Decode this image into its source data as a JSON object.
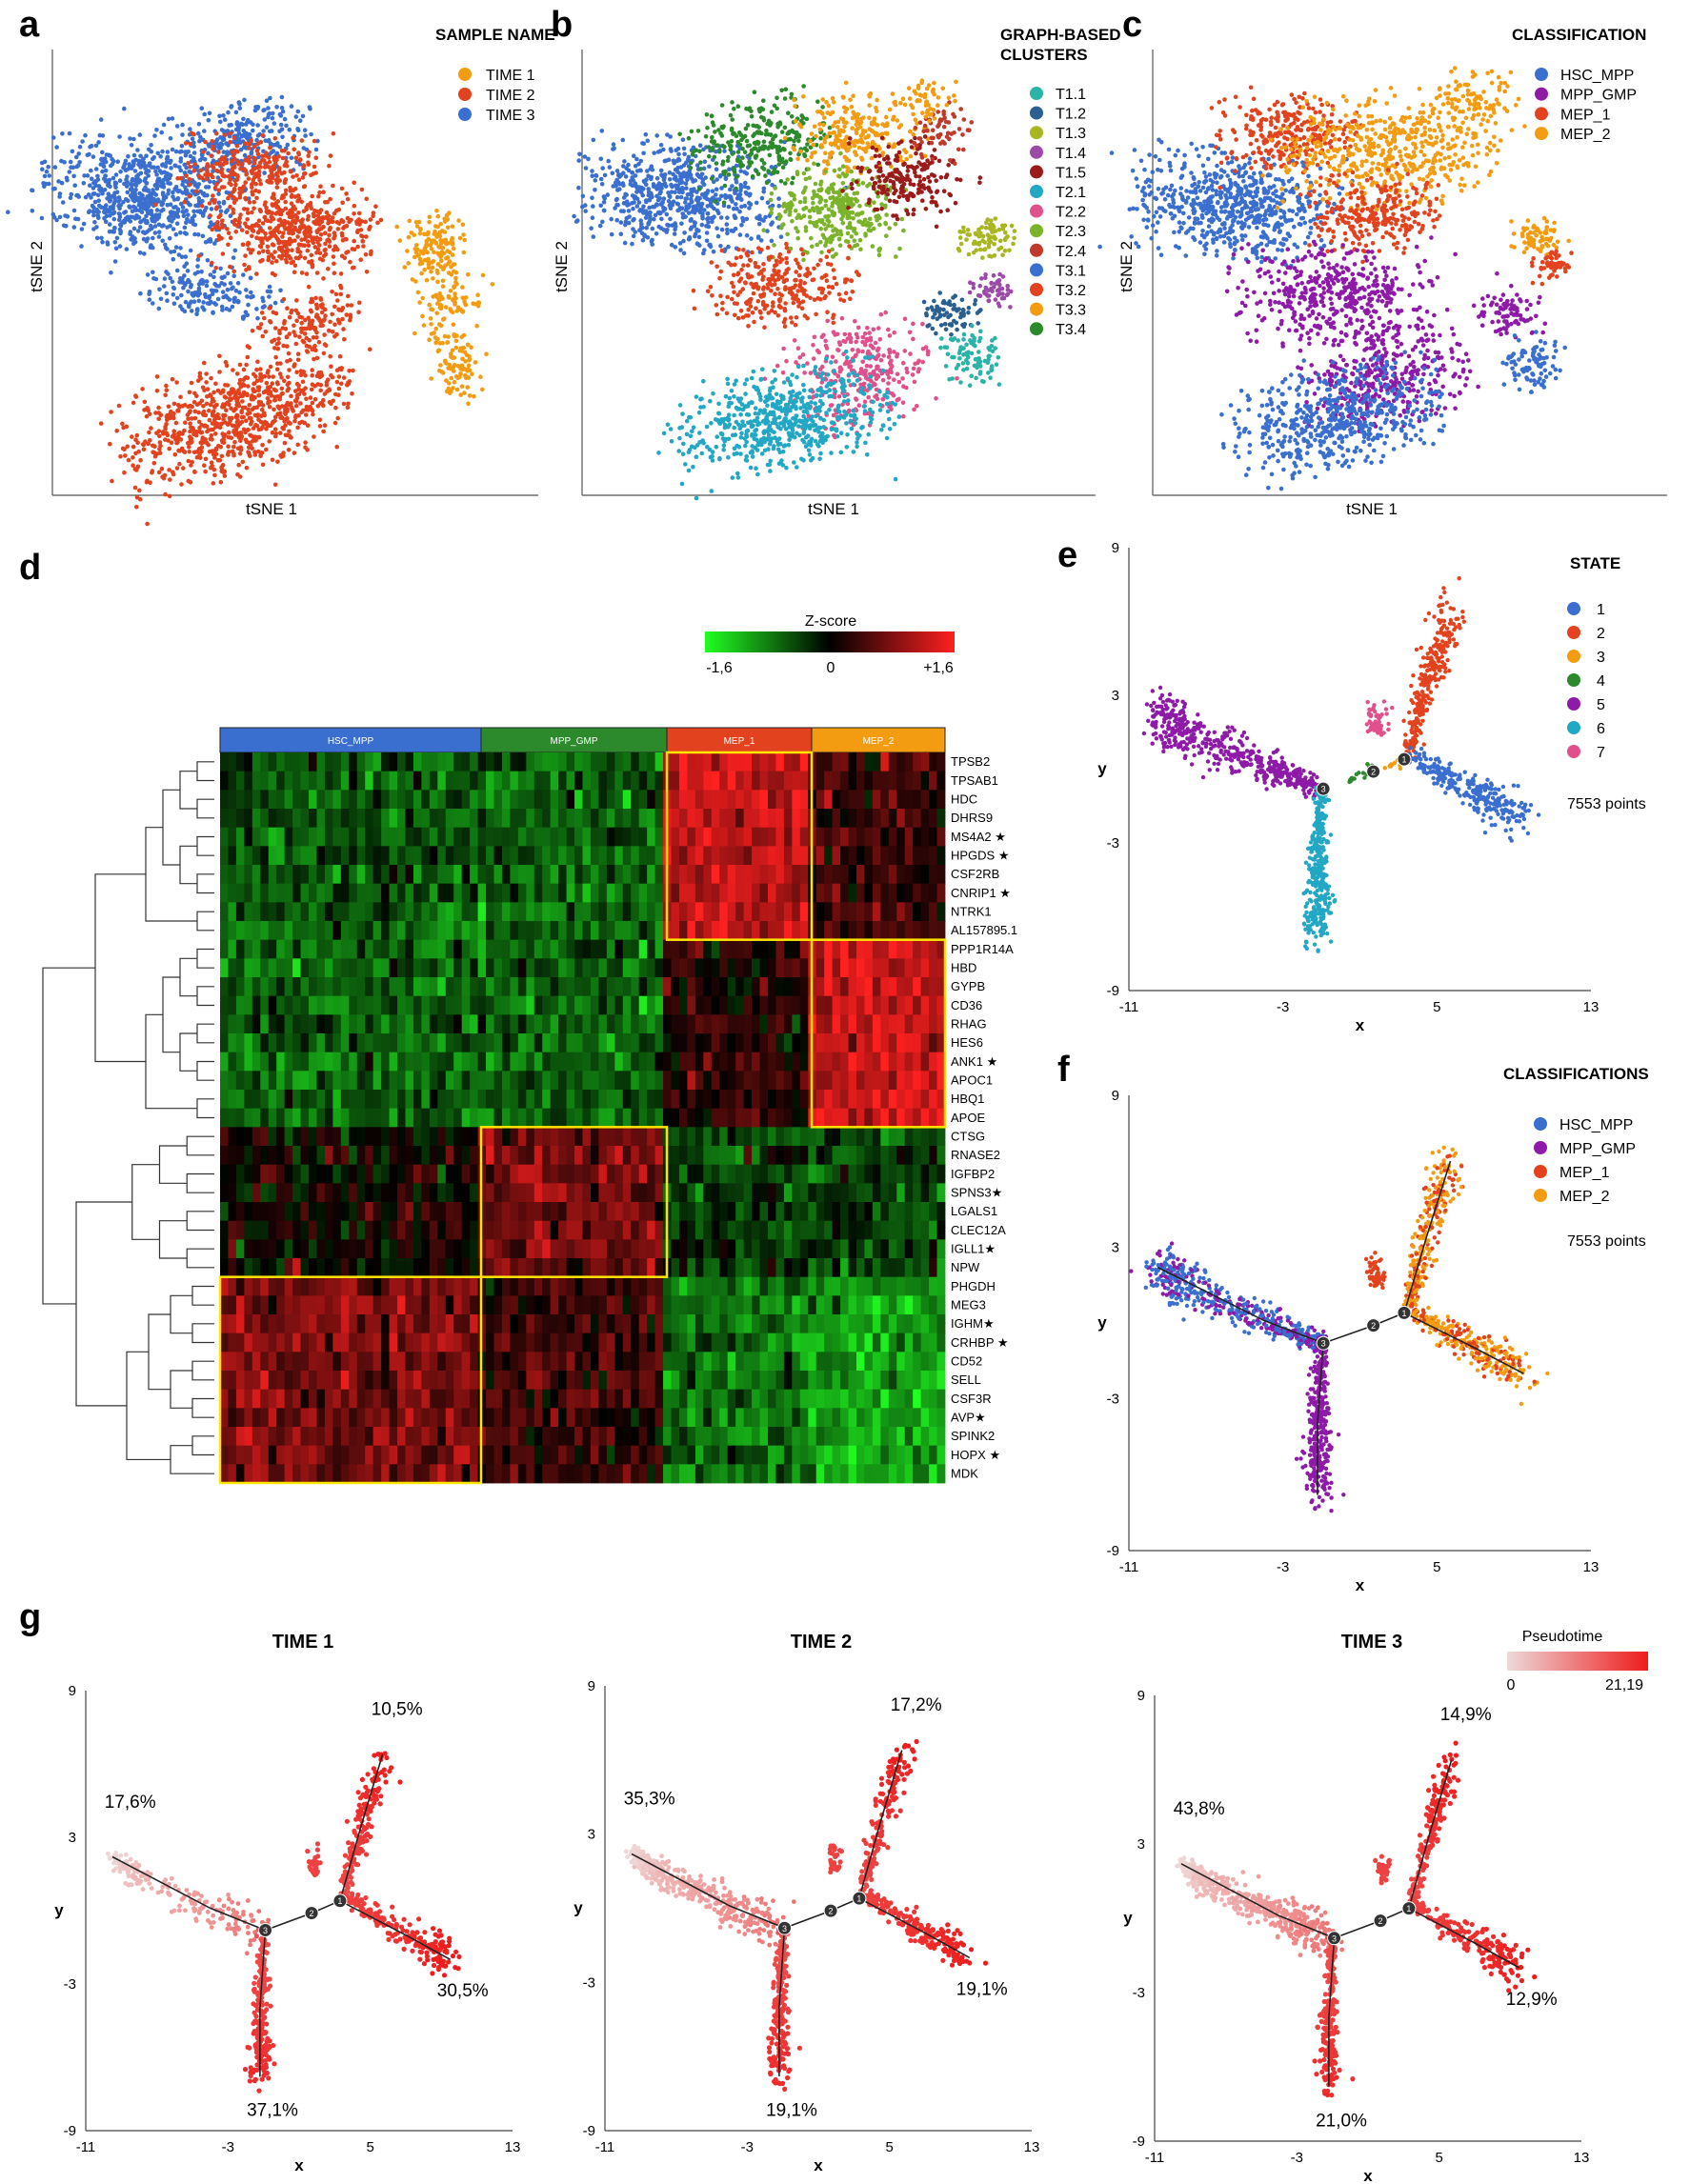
{
  "colors": {
    "orange": "#f39c12",
    "red": "#e2431e",
    "blue": "#3a6fcf",
    "purple": "#8e1aa8",
    "green": "#2ca02c",
    "cyan": "#22a7c4",
    "pink": "#e0508a",
    "dark_red": "#9b1b1b",
    "teal": "#2cb3a8",
    "olive": "#a8b622",
    "steel": "#2a5f8f",
    "mauve": "#9b4aa8",
    "lime": "#7bb32a"
  },
  "panels": {
    "a": {
      "label": "a",
      "legend_title": "SAMPLE NAME",
      "xlabel": "tSNE 1",
      "ylabel": "tSNE 2"
    },
    "b": {
      "label": "b",
      "legend_title_line1": "GRAPH-BASED",
      "legend_title_line2": "CLUSTERS",
      "xlabel": "tSNE 1",
      "ylabel": "tSNE 2"
    },
    "c": {
      "label": "c",
      "legend_title": "CLASSIFICATION",
      "xlabel": "tSNE 1",
      "ylabel": "tSNE 2"
    },
    "d": {
      "label": "d",
      "zscore_title": "Z-score",
      "zscore_min": "-1,6",
      "zscore_mid": "0",
      "zscore_max": "+1,6"
    },
    "e": {
      "label": "e",
      "legend_title": "STATE",
      "points_note": "7553 points",
      "xlabel": "x",
      "ylabel": "y"
    },
    "f": {
      "label": "f",
      "legend_title": "CLASSIFICATIONS",
      "points_note": "7553 points",
      "xlabel": "x",
      "ylabel": "y"
    },
    "g": {
      "label": "g",
      "pseudotime_title": "Pseudotime",
      "pseudotime_min": "0",
      "pseudotime_max": "21,19",
      "xlabel": "x",
      "ylabel": "y"
    }
  },
  "chart_data": [
    {
      "type": "scatter",
      "panel": "a",
      "title": "SAMPLE NAME",
      "xlabel": "tSNE 1",
      "ylabel": "tSNE 2",
      "series": [
        {
          "name": "TIME 1",
          "color": "#f39c12"
        },
        {
          "name": "TIME 2",
          "color": "#e2431e"
        },
        {
          "name": "TIME 3",
          "color": "#3a6fcf"
        }
      ]
    },
    {
      "type": "scatter",
      "panel": "b",
      "title": "GRAPH-BASED CLUSTERS",
      "xlabel": "tSNE 1",
      "ylabel": "tSNE 2",
      "series": [
        {
          "name": "T1.1",
          "color": "#2cb3a8"
        },
        {
          "name": "T1.2",
          "color": "#2a5f8f"
        },
        {
          "name": "T1.3",
          "color": "#a8b622"
        },
        {
          "name": "T1.4",
          "color": "#9b4aa8"
        },
        {
          "name": "T1.5",
          "color": "#9b1b1b"
        },
        {
          "name": "T2.1",
          "color": "#22a7c4"
        },
        {
          "name": "T2.2",
          "color": "#e0508a"
        },
        {
          "name": "T2.3",
          "color": "#7bb32a"
        },
        {
          "name": "T2.4",
          "color": "#c0392b"
        },
        {
          "name": "T3.1",
          "color": "#3a6fcf"
        },
        {
          "name": "T3.2",
          "color": "#e2431e"
        },
        {
          "name": "T3.3",
          "color": "#f39c12"
        },
        {
          "name": "T3.4",
          "color": "#2c8a2c"
        }
      ]
    },
    {
      "type": "scatter",
      "panel": "c",
      "title": "CLASSIFICATION",
      "xlabel": "tSNE 1",
      "ylabel": "tSNE 2",
      "series": [
        {
          "name": "HSC_MPP",
          "color": "#3a6fcf"
        },
        {
          "name": "MPP_GMP",
          "color": "#8e1aa8"
        },
        {
          "name": "MEP_1",
          "color": "#e2431e"
        },
        {
          "name": "MEP_2",
          "color": "#f39c12"
        }
      ]
    },
    {
      "type": "heatmap",
      "panel": "d",
      "title": "Z-score",
      "color_range": [
        -1.6,
        1.6
      ],
      "column_groups": [
        "HSC_MPP",
        "MPP_GMP",
        "MEP_1",
        "MEP_2"
      ],
      "genes": [
        "TPSB2",
        "TPSAB1",
        "HDC",
        "DHRS9",
        "MS4A2 ★",
        "HPGDS ★",
        "CSF2RB",
        "CNRIP1 ★",
        "NTRK1",
        "AL157895.1",
        "PPP1R14A",
        "HBD",
        "GYPB",
        "CD36",
        "RHAG",
        "HES6",
        "ANK1 ★",
        "APOC1",
        "HBQ1",
        "APOE",
        "CTSG",
        "RNASE2",
        "IGFBP2",
        "SPNS3★",
        "LGALS1",
        "CLEC12A",
        "IGLL1★",
        "NPW",
        "PHGDH",
        "MEG3",
        "IGHM★",
        "CRHBP ★",
        "CD52",
        "SELL",
        "CSF3R",
        "AVP★",
        "SPINK2",
        "HOPX ★",
        "MDK"
      ]
    },
    {
      "type": "scatter",
      "panel": "e",
      "title": "STATE",
      "xlabel": "x",
      "ylabel": "y",
      "xlim": [
        -11,
        13
      ],
      "ylim": [
        -9,
        9
      ],
      "xticks": [
        "-11",
        "-3",
        "5",
        "13"
      ],
      "yticks": [
        "9",
        "3",
        "-3",
        "-9"
      ],
      "series": [
        {
          "name": "1",
          "color": "#3a6fcf"
        },
        {
          "name": "2",
          "color": "#e2431e"
        },
        {
          "name": "3",
          "color": "#f39c12"
        },
        {
          "name": "4",
          "color": "#2c8a2c"
        },
        {
          "name": "5",
          "color": "#8e1aa8"
        },
        {
          "name": "6",
          "color": "#22a7c4"
        },
        {
          "name": "7",
          "color": "#e0508a"
        }
      ]
    },
    {
      "type": "scatter",
      "panel": "f",
      "title": "CLASSIFICATIONS",
      "xlabel": "x",
      "ylabel": "y",
      "xlim": [
        -11,
        13
      ],
      "ylim": [
        -9,
        9
      ],
      "xticks": [
        "-11",
        "-3",
        "5",
        "13"
      ],
      "yticks": [
        "9",
        "3",
        "-3",
        "-9"
      ],
      "series": [
        {
          "name": "HSC_MPP",
          "color": "#3a6fcf"
        },
        {
          "name": "MPP_GMP",
          "color": "#8e1aa8"
        },
        {
          "name": "MEP_1",
          "color": "#e2431e"
        },
        {
          "name": "MEP_2",
          "color": "#f39c12"
        }
      ]
    },
    {
      "type": "scatter",
      "panel": "g",
      "title": "Pseudotime",
      "xlabel": "x",
      "ylabel": "y",
      "xlim": [
        -11,
        13
      ],
      "ylim": [
        -9,
        9
      ],
      "xticks": [
        "-11",
        "-3",
        "5",
        "13"
      ],
      "yticks": [
        "9",
        "3",
        "-3",
        "-9"
      ],
      "pseudotime_range": [
        0,
        21.19
      ],
      "subplots": [
        {
          "title": "TIME 1",
          "branch_pct": {
            "left": "17,6%",
            "top": "10,5%",
            "right": "30,5%",
            "bottom": "37,1%"
          }
        },
        {
          "title": "TIME 2",
          "branch_pct": {
            "left": "35,3%",
            "top": "17,2%",
            "right": "19,1%",
            "bottom": "19,1%"
          }
        },
        {
          "title": "TIME 3",
          "branch_pct": {
            "left": "43,8%",
            "top": "14,9%",
            "right": "12,9%",
            "bottom": "21,0%"
          }
        }
      ]
    }
  ]
}
